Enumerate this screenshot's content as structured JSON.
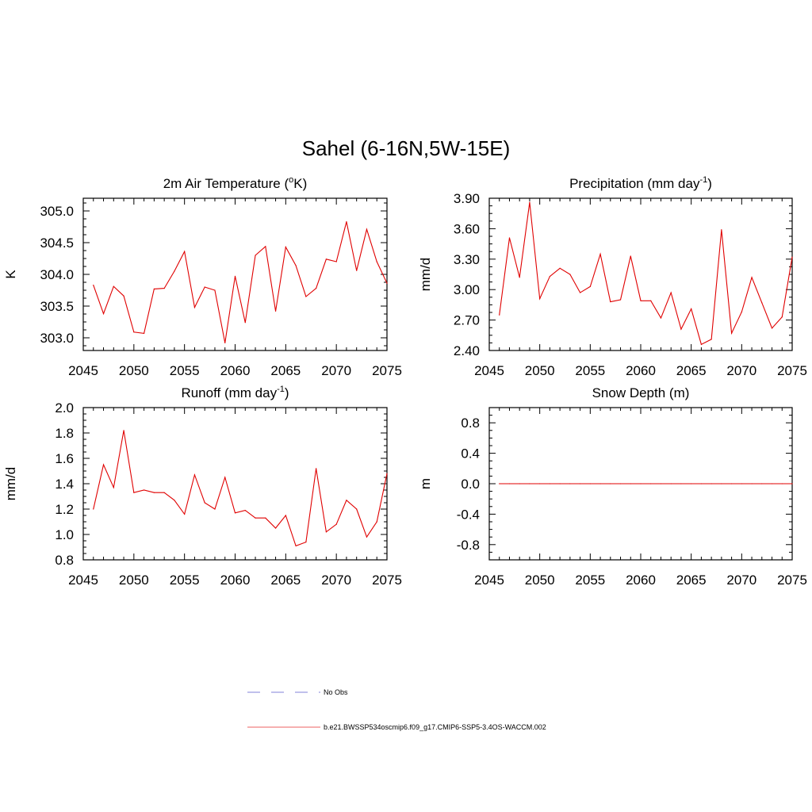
{
  "figure": {
    "title": "Sahel (6-16N,5W-15E)"
  },
  "legend": {
    "entries": [
      {
        "label": "No Obs",
        "color": "#9a9ae0",
        "style": "dashed"
      },
      {
        "label": "b.e21.BWSSP534oscmip6.f09_g17.CMIP6-SSP5-3.4OS-WACCM.002",
        "color": "#f08080",
        "style": "solid"
      }
    ]
  },
  "chart_data": [
    {
      "type": "line",
      "title": "2m Air Temperature (",
      "title_sup": "o",
      "title_after": "K)",
      "ylabel": "K",
      "xlim": [
        2045,
        2075
      ],
      "ylim": [
        302.8,
        305.2
      ],
      "xticks": [
        2045,
        2050,
        2055,
        2060,
        2065,
        2070,
        2075
      ],
      "yticks": [
        303.0,
        303.5,
        304.0,
        304.5,
        305.0
      ],
      "ytick_labels": [
        "303.0",
        "303.5",
        "304.0",
        "304.5",
        "305.0"
      ],
      "color": "#e00000",
      "x": [
        2046,
        2047,
        2048,
        2049,
        2050,
        2051,
        2052,
        2053,
        2054,
        2055,
        2056,
        2057,
        2058,
        2059,
        2060,
        2061,
        2062,
        2063,
        2064,
        2065,
        2066,
        2067,
        2068,
        2069,
        2070,
        2071,
        2072,
        2073,
        2074,
        2075
      ],
      "y": [
        303.83,
        303.38,
        303.81,
        303.66,
        303.09,
        303.07,
        303.77,
        303.78,
        304.05,
        304.36,
        303.48,
        303.8,
        303.75,
        302.92,
        303.97,
        303.24,
        304.3,
        304.44,
        303.42,
        304.43,
        304.14,
        303.65,
        303.78,
        304.24,
        304.2,
        304.83,
        304.06,
        304.71,
        304.2,
        303.86
      ]
    },
    {
      "type": "line",
      "title": "Precipitation (mm day",
      "title_sup": "-1",
      "title_after": ")",
      "ylabel": "mm/d",
      "xlim": [
        2045,
        2075
      ],
      "ylim": [
        2.4,
        3.9
      ],
      "xticks": [
        2045,
        2050,
        2055,
        2060,
        2065,
        2070,
        2075
      ],
      "yticks": [
        2.4,
        2.7,
        3.0,
        3.3,
        3.6,
        3.9
      ],
      "ytick_labels": [
        "2.40",
        "2.70",
        "3.00",
        "3.30",
        "3.60",
        "3.90"
      ],
      "color": "#e00000",
      "x": [
        2046,
        2047,
        2048,
        2049,
        2050,
        2051,
        2052,
        2053,
        2054,
        2055,
        2056,
        2057,
        2058,
        2059,
        2060,
        2061,
        2062,
        2063,
        2064,
        2065,
        2066,
        2067,
        2068,
        2069,
        2070,
        2071,
        2072,
        2073,
        2074,
        2075
      ],
      "y": [
        2.75,
        3.51,
        3.12,
        3.86,
        2.91,
        3.13,
        3.21,
        3.15,
        2.97,
        3.03,
        3.35,
        2.88,
        2.9,
        3.33,
        2.89,
        2.89,
        2.72,
        2.97,
        2.61,
        2.81,
        2.46,
        2.51,
        3.59,
        2.57,
        2.78,
        3.12,
        2.87,
        2.62,
        2.73,
        3.32
      ]
    },
    {
      "type": "line",
      "title": "Runoff (mm day",
      "title_sup": "-1",
      "title_after": ")",
      "ylabel": "mm/d",
      "xlim": [
        2045,
        2075
      ],
      "ylim": [
        0.8,
        2.0
      ],
      "xticks": [
        2045,
        2050,
        2055,
        2060,
        2065,
        2070,
        2075
      ],
      "yticks": [
        0.8,
        1.0,
        1.2,
        1.4,
        1.6,
        1.8,
        2.0
      ],
      "ytick_labels": [
        "0.8",
        "1.0",
        "1.2",
        "1.4",
        "1.6",
        "1.8",
        "2.0"
      ],
      "color": "#e00000",
      "x": [
        2046,
        2047,
        2048,
        2049,
        2050,
        2051,
        2052,
        2053,
        2054,
        2055,
        2056,
        2057,
        2058,
        2059,
        2060,
        2061,
        2062,
        2063,
        2064,
        2065,
        2066,
        2067,
        2068,
        2069,
        2070,
        2071,
        2072,
        2073,
        2074,
        2075
      ],
      "y": [
        1.2,
        1.55,
        1.37,
        1.82,
        1.33,
        1.35,
        1.33,
        1.33,
        1.27,
        1.16,
        1.47,
        1.25,
        1.2,
        1.45,
        1.17,
        1.19,
        1.13,
        1.13,
        1.05,
        1.15,
        0.91,
        0.94,
        1.52,
        1.02,
        1.08,
        1.27,
        1.2,
        0.98,
        1.1,
        1.48
      ]
    },
    {
      "type": "line",
      "title": "Snow Depth (m)",
      "title_sup": "",
      "title_after": "",
      "ylabel": "m",
      "xlim": [
        2045,
        2075
      ],
      "ylim": [
        -1.0,
        1.0
      ],
      "xticks": [
        2045,
        2050,
        2055,
        2060,
        2065,
        2070,
        2075
      ],
      "yticks": [
        -0.8,
        -0.4,
        0.0,
        0.4,
        0.8
      ],
      "ytick_labels": [
        "-0.8",
        "-0.4",
        "0.0",
        "0.4",
        "0.8"
      ],
      "color": "#e00000",
      "x": [
        2046,
        2047,
        2048,
        2049,
        2050,
        2051,
        2052,
        2053,
        2054,
        2055,
        2056,
        2057,
        2058,
        2059,
        2060,
        2061,
        2062,
        2063,
        2064,
        2065,
        2066,
        2067,
        2068,
        2069,
        2070,
        2071,
        2072,
        2073,
        2074,
        2075
      ],
      "y": [
        0,
        0,
        0,
        0,
        0,
        0,
        0,
        0,
        0,
        0,
        0,
        0,
        0,
        0,
        0,
        0,
        0,
        0,
        0,
        0,
        0,
        0,
        0,
        0,
        0,
        0,
        0,
        0,
        0,
        0
      ]
    }
  ]
}
